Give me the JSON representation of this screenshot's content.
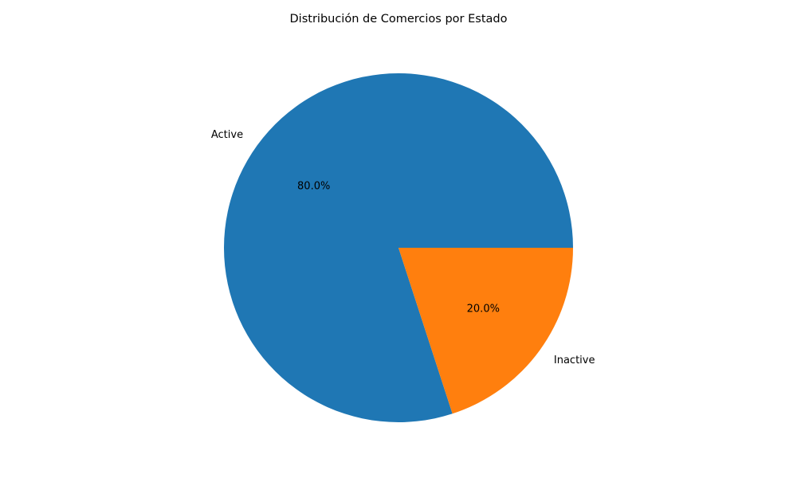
{
  "chart_data": {
    "type": "pie",
    "title": "Distribución de Comercios por Estado",
    "slices": [
      {
        "label": "Active",
        "value": 80.0,
        "percent_label": "80.0%",
        "color": "#1f77b4"
      },
      {
        "label": "Inactive",
        "value": 20.0,
        "percent_label": "20.0%",
        "color": "#ff7f0e"
      }
    ],
    "start_angle_deg": 0,
    "direction": "counterclockwise"
  }
}
